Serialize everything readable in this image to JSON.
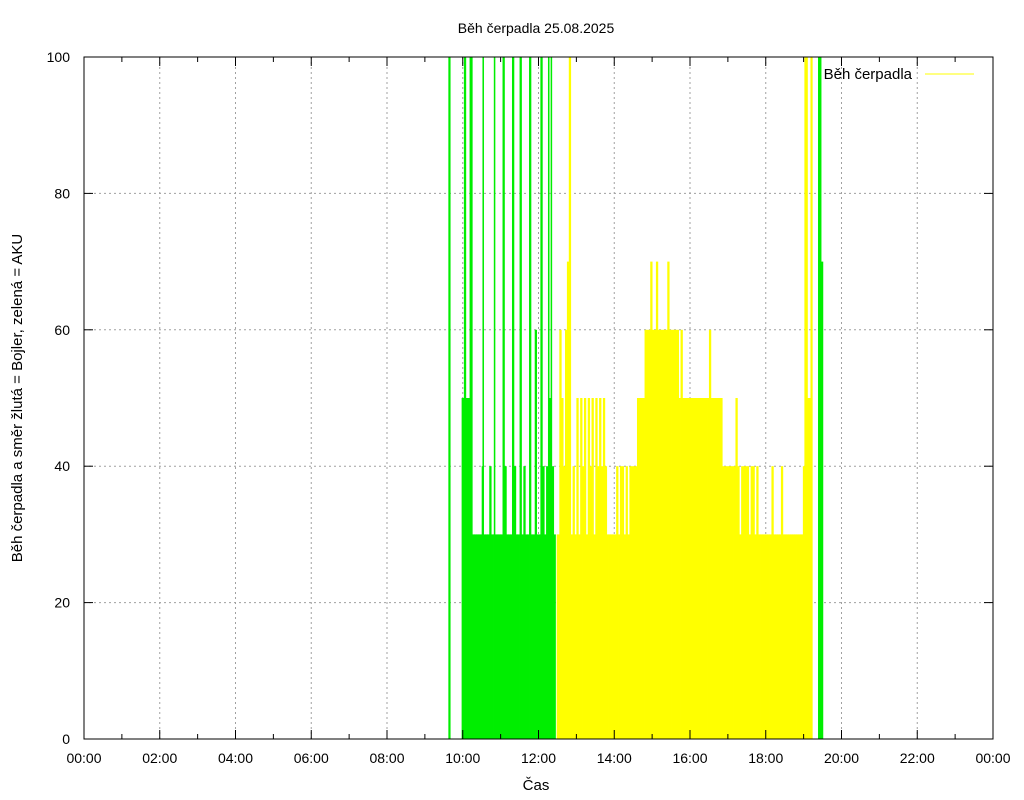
{
  "chart_data": {
    "type": "bar",
    "title": "Běh čerpadla 25.08.2025",
    "xlabel": "Čas",
    "ylabel": "Běh čerpadla a směr žlutá = Bojler, zelená = AKU",
    "x_unit": "hours",
    "xlim": [
      0,
      24
    ],
    "ylim": [
      0,
      100
    ],
    "grid": true,
    "legend_position": "top-right",
    "x_ticks": [
      "00:00",
      "02:00",
      "04:00",
      "06:00",
      "08:00",
      "10:00",
      "12:00",
      "14:00",
      "16:00",
      "18:00",
      "20:00",
      "22:00",
      "00:00"
    ],
    "y_ticks": [
      "0",
      "20",
      "40",
      "60",
      "80",
      "100"
    ],
    "legend": [
      {
        "label": "Běh čerpadla",
        "color": "#ffff00"
      }
    ],
    "series": [
      {
        "color": "#00ee00",
        "bars": [
          [
            9.62,
            100
          ],
          [
            9.97,
            50
          ],
          [
            10.03,
            100
          ],
          [
            10.08,
            50
          ],
          [
            10.18,
            100
          ],
          [
            10.25,
            30
          ],
          [
            10.3,
            30
          ],
          [
            10.35,
            30
          ],
          [
            10.4,
            30
          ],
          [
            10.45,
            30
          ],
          [
            10.5,
            40
          ],
          [
            10.52,
            100
          ],
          [
            10.55,
            30
          ],
          [
            10.6,
            30
          ],
          [
            10.65,
            30
          ],
          [
            10.7,
            40
          ],
          [
            10.75,
            30
          ],
          [
            10.8,
            30
          ],
          [
            10.82,
            100
          ],
          [
            10.85,
            30
          ],
          [
            10.9,
            30
          ],
          [
            10.95,
            30
          ],
          [
            11.0,
            30
          ],
          [
            11.05,
            100
          ],
          [
            11.1,
            40
          ],
          [
            11.15,
            30
          ],
          [
            11.2,
            30
          ],
          [
            11.25,
            30
          ],
          [
            11.3,
            100
          ],
          [
            11.35,
            40
          ],
          [
            11.4,
            30
          ],
          [
            11.45,
            30
          ],
          [
            11.5,
            100
          ],
          [
            11.55,
            30
          ],
          [
            11.6,
            40
          ],
          [
            11.65,
            30
          ],
          [
            11.7,
            30
          ],
          [
            11.75,
            100
          ],
          [
            11.8,
            30
          ],
          [
            11.85,
            30
          ],
          [
            11.9,
            60
          ],
          [
            11.95,
            30
          ],
          [
            12.0,
            30
          ],
          [
            12.05,
            100
          ],
          [
            12.1,
            40
          ],
          [
            12.15,
            30
          ],
          [
            12.2,
            40
          ],
          [
            12.25,
            100
          ],
          [
            12.28,
            50
          ],
          [
            12.32,
            100
          ],
          [
            12.35,
            40
          ],
          [
            12.4,
            30
          ],
          [
            19.38,
            100
          ],
          [
            19.4,
            100
          ],
          [
            19.42,
            100
          ],
          [
            19.44,
            100
          ],
          [
            19.46,
            70
          ]
        ]
      },
      {
        "color": "#ffff00",
        "bars": [
          [
            12.48,
            30
          ],
          [
            12.55,
            60
          ],
          [
            12.6,
            50
          ],
          [
            12.65,
            40
          ],
          [
            12.7,
            60
          ],
          [
            12.75,
            70
          ],
          [
            12.8,
            100
          ],
          [
            12.85,
            30
          ],
          [
            12.9,
            40
          ],
          [
            12.95,
            30
          ],
          [
            13.0,
            50
          ],
          [
            13.05,
            30
          ],
          [
            13.1,
            50
          ],
          [
            13.15,
            40
          ],
          [
            13.2,
            50
          ],
          [
            13.25,
            30
          ],
          [
            13.3,
            50
          ],
          [
            13.35,
            40
          ],
          [
            13.4,
            50
          ],
          [
            13.45,
            30
          ],
          [
            13.5,
            50
          ],
          [
            13.55,
            40
          ],
          [
            13.6,
            50
          ],
          [
            13.65,
            40
          ],
          [
            13.7,
            50
          ],
          [
            13.75,
            40
          ],
          [
            13.8,
            30
          ],
          [
            13.85,
            30
          ],
          [
            13.9,
            30
          ],
          [
            13.95,
            30
          ],
          [
            14.0,
            30
          ],
          [
            14.05,
            40
          ],
          [
            14.1,
            30
          ],
          [
            14.15,
            40
          ],
          [
            14.2,
            40
          ],
          [
            14.25,
            30
          ],
          [
            14.3,
            40
          ],
          [
            14.35,
            30
          ],
          [
            14.4,
            40
          ],
          [
            14.45,
            40
          ],
          [
            14.5,
            40
          ],
          [
            14.55,
            40
          ],
          [
            14.6,
            50
          ],
          [
            14.65,
            50
          ],
          [
            14.7,
            50
          ],
          [
            14.75,
            50
          ],
          [
            14.8,
            60
          ],
          [
            14.85,
            60
          ],
          [
            14.9,
            60
          ],
          [
            14.95,
            70
          ],
          [
            15.0,
            60
          ],
          [
            15.05,
            60
          ],
          [
            15.1,
            70
          ],
          [
            15.15,
            60
          ],
          [
            15.2,
            60
          ],
          [
            15.25,
            60
          ],
          [
            15.3,
            60
          ],
          [
            15.35,
            60
          ],
          [
            15.4,
            70
          ],
          [
            15.45,
            60
          ],
          [
            15.5,
            60
          ],
          [
            15.55,
            60
          ],
          [
            15.6,
            60
          ],
          [
            15.65,
            60
          ],
          [
            15.7,
            50
          ],
          [
            15.75,
            60
          ],
          [
            15.8,
            50
          ],
          [
            15.85,
            50
          ],
          [
            15.9,
            50
          ],
          [
            15.95,
            50
          ],
          [
            16.0,
            50
          ],
          [
            16.05,
            50
          ],
          [
            16.1,
            50
          ],
          [
            16.15,
            50
          ],
          [
            16.2,
            50
          ],
          [
            16.25,
            50
          ],
          [
            16.3,
            50
          ],
          [
            16.35,
            50
          ],
          [
            16.4,
            50
          ],
          [
            16.45,
            50
          ],
          [
            16.5,
            60
          ],
          [
            16.55,
            50
          ],
          [
            16.6,
            50
          ],
          [
            16.65,
            50
          ],
          [
            16.7,
            50
          ],
          [
            16.75,
            50
          ],
          [
            16.8,
            50
          ],
          [
            16.85,
            40
          ],
          [
            16.9,
            40
          ],
          [
            16.95,
            40
          ],
          [
            17.0,
            40
          ],
          [
            17.05,
            40
          ],
          [
            17.1,
            40
          ],
          [
            17.15,
            40
          ],
          [
            17.2,
            50
          ],
          [
            17.25,
            40
          ],
          [
            17.3,
            30
          ],
          [
            17.35,
            40
          ],
          [
            17.4,
            40
          ],
          [
            17.45,
            40
          ],
          [
            17.5,
            40
          ],
          [
            17.55,
            30
          ],
          [
            17.6,
            40
          ],
          [
            17.65,
            40
          ],
          [
            17.7,
            30
          ],
          [
            17.75,
            40
          ],
          [
            17.8,
            30
          ],
          [
            17.85,
            30
          ],
          [
            17.9,
            30
          ],
          [
            17.95,
            30
          ],
          [
            18.0,
            30
          ],
          [
            18.05,
            30
          ],
          [
            18.1,
            30
          ],
          [
            18.15,
            40
          ],
          [
            18.2,
            30
          ],
          [
            18.25,
            30
          ],
          [
            18.3,
            30
          ],
          [
            18.35,
            30
          ],
          [
            18.4,
            40
          ],
          [
            18.45,
            30
          ],
          [
            18.5,
            30
          ],
          [
            18.55,
            30
          ],
          [
            18.6,
            30
          ],
          [
            18.65,
            30
          ],
          [
            18.7,
            30
          ],
          [
            18.75,
            30
          ],
          [
            18.8,
            30
          ],
          [
            18.85,
            30
          ],
          [
            18.9,
            30
          ],
          [
            18.98,
            40
          ],
          [
            19.02,
            100
          ],
          [
            19.1,
            50
          ],
          [
            19.18,
            100
          ]
        ]
      }
    ]
  }
}
